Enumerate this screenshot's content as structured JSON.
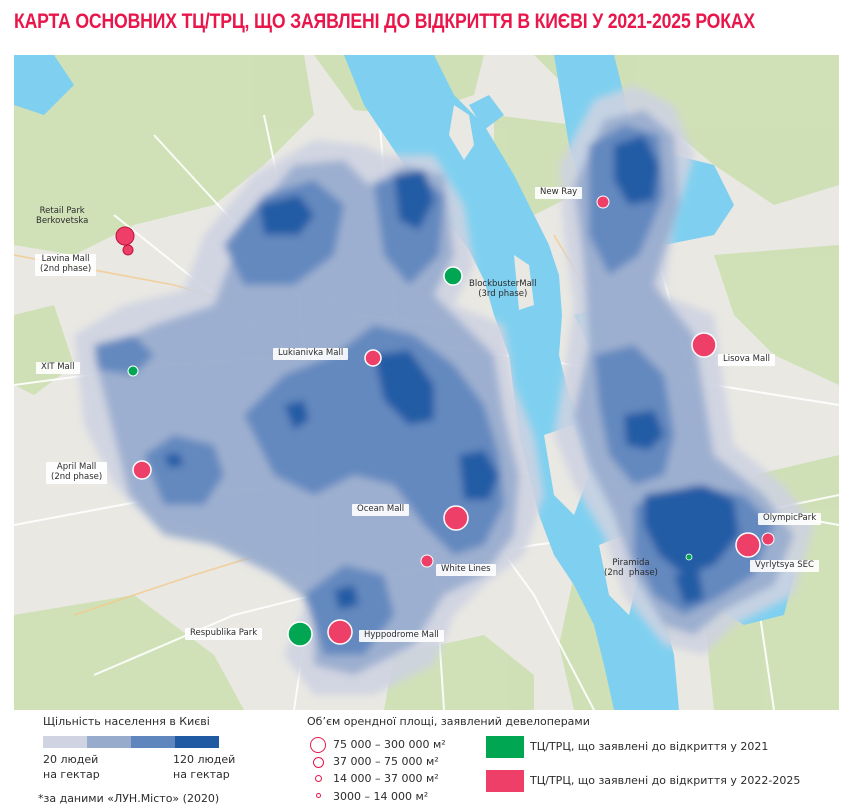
{
  "title": "КАРТА ОСНОВНИХ ТЦ/ТРЦ, ЩО ЗАЯВЛЕНІ ДО ВІДКРИТТЯ В КИЄВІ У 2021-2025 РОКАХ",
  "colors": {
    "accent": "#e8164a",
    "green_mall": "#00a651",
    "red_mall": "#ee3f68",
    "density_1": "#cfd3e2",
    "density_2": "#97abcd",
    "density_3": "#5f86bd",
    "density_4": "#1f5aa3",
    "water": "#7fd0f0",
    "land": "#e9e8e3",
    "green_land": "#cfe0b4"
  },
  "malls": [
    {
      "name": "Retail Park\nBerkovetska",
      "type": "red",
      "size": "75000-300000"
    },
    {
      "name": "Lavina Mall\n(2nd phase)",
      "type": "red",
      "size": "14000-37000"
    },
    {
      "name": "BlockbusterMall\n(3rd phase)",
      "type": "green",
      "size": "37000-75000"
    },
    {
      "name": "New Ray",
      "type": "red",
      "size": "14000-37000"
    },
    {
      "name": "XIT Mall",
      "type": "green",
      "size": "14000-37000"
    },
    {
      "name": "Lukianivka Mall",
      "type": "red",
      "size": "37000-75000"
    },
    {
      "name": "Lisova Mall",
      "type": "red",
      "size": "75000-300000"
    },
    {
      "name": "April Mall\n(2nd phase)",
      "type": "red",
      "size": "37000-75000"
    },
    {
      "name": "Ocean Mall",
      "type": "red",
      "size": "75000-300000"
    },
    {
      "name": "OlympicPark",
      "type": "red",
      "size": "14000-37000"
    },
    {
      "name": "White Lines",
      "type": "red",
      "size": "14000-37000"
    },
    {
      "name": "Piramida\n(2nd  phase)",
      "type": "green",
      "size": "3000-14000"
    },
    {
      "name": "Vyrlytsya SEC",
      "type": "red",
      "size": "75000-300000"
    },
    {
      "name": "Respublika Park",
      "type": "green",
      "size": "75000-300000"
    },
    {
      "name": "Hyppodrome Mall",
      "type": "red",
      "size": "75000-300000"
    }
  ],
  "legend": {
    "density_title": "Щільність населення в Києві",
    "density_low": "20 людей\nна гектар",
    "density_high": "120 людей\nна гектар",
    "footnote": "*за даними «ЛУН.Місто» (2020)",
    "area_title": "Об’єм орендної площі, заявлений девелоперами",
    "area_sizes": [
      "75 000 – 300 000 м²",
      "37 000 – 75 000 м²",
      "14 000 – 37 000 м²",
      "3000 – 14 000 м²"
    ],
    "green_label": "ТЦ/ТРЦ, що заявлені до відкриття у 2021",
    "red_label": "ТЦ/ТРЦ, що заявлені до відкриття у 2022-2025"
  }
}
